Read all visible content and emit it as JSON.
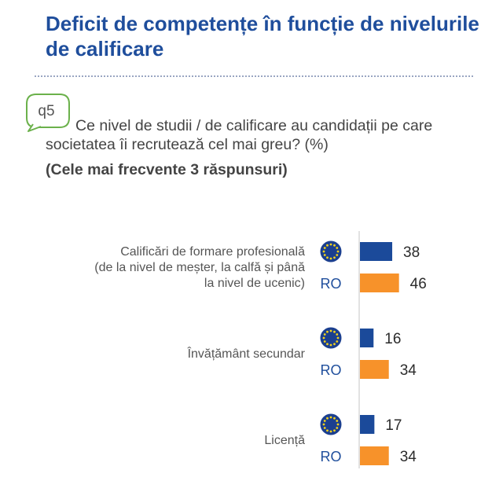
{
  "header": {
    "title": "Deficit de competențe în funcție de nivelurile de calificare"
  },
  "question": {
    "badge": "q5",
    "text": "Ce nivel de studii / de calificare au candidații pe care societatea îi recrutează cel mai greu? (%)",
    "subtitle": "(Cele mai frecvente 3 răspunsuri)"
  },
  "colors": {
    "eu": "#1b4a9a",
    "ro": "#f7922a",
    "title": "#1f4e9c",
    "eu_flag": "#1b3f8f",
    "eu_stars": "#f3d21a"
  },
  "chart_data": {
    "type": "bar",
    "orientation": "horizontal",
    "categories": [
      [
        "Calificări de formare profesională",
        "(de la nivel de meșter, la calfă și până",
        "la nivel de ucenic)"
      ],
      [
        "Învățământ secundar"
      ],
      [
        "Licență"
      ]
    ],
    "series": [
      {
        "name": "EU",
        "icon": "eu-flag-icon",
        "values": [
          38,
          16,
          17
        ]
      },
      {
        "name": "RO",
        "values": [
          46,
          34,
          34
        ]
      }
    ],
    "xlim": [
      0,
      100
    ]
  }
}
